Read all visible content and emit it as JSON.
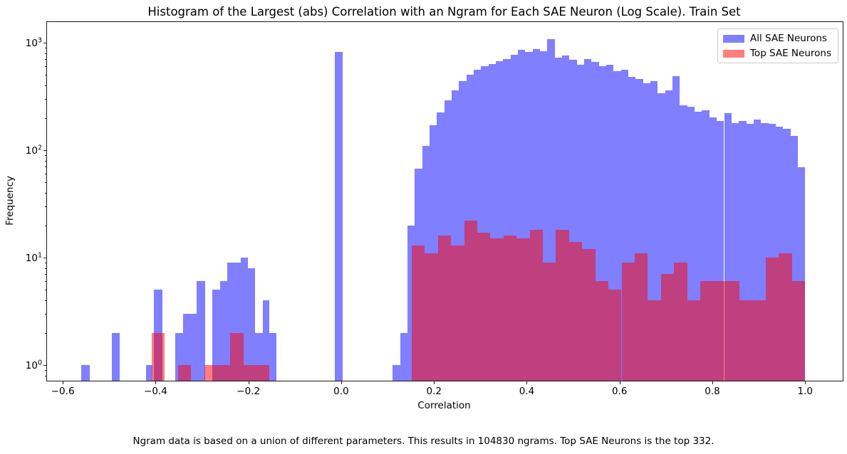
{
  "title": "Histogram of the Largest (abs) Correlation with an Ngram for Each SAE Neuron (Log Scale). Train Set",
  "xlabel": "Correlation",
  "ylabel": "Frequency",
  "caption": "Ngram data is based on a union of different parameters. This results in 104830 ngrams. Top SAE Neurons is the top 332.",
  "legend": {
    "items": [
      {
        "label": "All SAE Neurons",
        "color": "rgba(0,0,255,0.5)"
      },
      {
        "label": "Top SAE Neurons",
        "color": "rgba(255,0,0,0.5)"
      }
    ]
  },
  "colors": {
    "all_sae_fill": "#7f7fff",
    "top_sae_fill": "#ff7f7f",
    "overlap_fill": "#bf4080",
    "spine": "#1a1a1a",
    "background": "#ffffff"
  },
  "chart_data": {
    "type": "bar",
    "subtype": "overlaid-histogram",
    "title": "Histogram of the Largest (abs) Correlation with an Ngram for Each SAE Neuron (Log Scale). Train Set",
    "xlabel": "Correlation",
    "ylabel": "Frequency",
    "x_axis": {
      "min": -0.634,
      "max": 1.081,
      "ticks": [
        -0.6,
        -0.4,
        -0.2,
        0.0,
        0.2,
        0.4,
        0.6,
        0.8,
        1.0
      ]
    },
    "y_axis": {
      "scale": "log",
      "min": 0.72,
      "max": 1556,
      "tick_values": [
        1,
        10,
        100,
        1000
      ],
      "tick_exponents": [
        0,
        1,
        2,
        3
      ]
    },
    "grid": false,
    "legend_position": "upper right",
    "series": [
      {
        "name": "All SAE Neurons",
        "color": "rgba(0,0,255,0.5)",
        "scattered_bars": [
          [
            -0.561,
            -0.542,
            1
          ],
          [
            -0.494,
            -0.478,
            2
          ],
          [
            -0.42,
            -0.406,
            1
          ],
          [
            -0.403,
            -0.386,
            5
          ],
          [
            -0.358,
            -0.341,
            2
          ],
          [
            -0.341,
            -0.312,
            3
          ],
          [
            -0.312,
            -0.293,
            6
          ],
          [
            -0.278,
            -0.261,
            5
          ],
          [
            -0.261,
            -0.246,
            6
          ],
          [
            -0.246,
            -0.217,
            9
          ],
          [
            -0.217,
            -0.201,
            10
          ],
          [
            -0.201,
            -0.186,
            8
          ],
          [
            -0.186,
            -0.169,
            2
          ],
          [
            -0.169,
            -0.155,
            4
          ],
          [
            -0.155,
            -0.14,
            2
          ],
          [
            -0.014,
            0.003,
            820
          ]
        ],
        "main_mass": {
          "start": 0.111,
          "bin_width": 0.015875,
          "counts": [
            1,
            2,
            20,
            67,
            110,
            170,
            224,
            290,
            362,
            437,
            503,
            562,
            600,
            634,
            672,
            707,
            768,
            860,
            818,
            868,
            830,
            1075,
            730,
            757,
            692,
            627,
            707,
            660,
            600,
            627,
            546,
            560,
            481,
            460,
            420,
            441,
            340,
            360,
            487,
            261,
            255,
            228,
            235,
            202,
            187,
            221,
            178,
            187,
            175,
            192,
            178,
            175,
            165,
            158,
            135,
            69
          ]
        }
      },
      {
        "name": "Top SAE Neurons",
        "color": "rgba(255,0,0,0.5)",
        "scattered_bars": [
          [
            -0.408,
            -0.38,
            2
          ],
          [
            -0.352,
            -0.324,
            1
          ],
          [
            -0.295,
            -0.267,
            1
          ],
          [
            -0.267,
            -0.239,
            1
          ],
          [
            -0.239,
            -0.211,
            2
          ],
          [
            -0.211,
            -0.183,
            1
          ],
          [
            -0.183,
            -0.155,
            1
          ]
        ],
        "main_mass": {
          "start": 0.152,
          "bin_width": 0.028267,
          "counts": [
            13,
            11,
            16,
            13,
            22,
            17,
            15,
            16,
            15,
            18,
            9,
            18,
            14,
            12,
            6,
            5,
            9,
            11,
            4,
            7,
            9,
            4,
            6,
            6,
            6,
            4,
            4,
            10,
            11,
            6
          ]
        }
      }
    ]
  }
}
